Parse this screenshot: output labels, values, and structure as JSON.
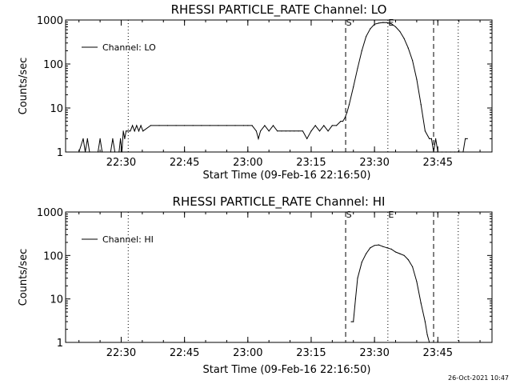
{
  "stamp": "26-Oct-2021 10:47",
  "chart_data": [
    {
      "type": "line",
      "title": "RHESSI PARTICLE_RATE Channel: LO",
      "xlabel": "Start Time (09-Feb-16 22:16:50)",
      "ylabel": "Counts/sec",
      "yscale": "log",
      "ylim": [
        1,
        1000
      ],
      "xlim": [
        "22:16:50",
        "23:57:50"
      ],
      "yticks": [
        "1",
        "10",
        "100",
        "1000"
      ],
      "xticks": [
        "22:30",
        "22:45",
        "23:00",
        "23:15",
        "23:30",
        "23:45"
      ],
      "legend": "top-left",
      "series": [
        {
          "name": "Channel: LO",
          "x": [
            "22:20:00",
            "22:21:00",
            "22:21:30",
            "22:22:00",
            "22:22:30",
            "22:24:30",
            "22:25:00",
            "22:25:30",
            "22:27:30",
            "22:28:00",
            "22:28:30",
            "22:29:30",
            "22:29:50",
            "22:30:10",
            "22:30:30",
            "22:30:50",
            "22:31:10",
            "22:31:30",
            "22:31:50",
            "22:32:10",
            "22:32:40",
            "22:33:10",
            "22:33:40",
            "22:34:10",
            "22:34:40",
            "22:35:10",
            "22:37:00",
            "22:39:00",
            "22:41:00",
            "22:43:00",
            "22:45:00",
            "22:47:00",
            "22:49:00",
            "22:51:00",
            "22:53:00",
            "22:55:00",
            "22:57:00",
            "22:59:00",
            "23:00:00",
            "23:01:00",
            "23:02:00",
            "23:02:30",
            "23:03:00",
            "23:04:00",
            "23:05:00",
            "23:06:00",
            "23:07:00",
            "23:08:00",
            "23:09:00",
            "23:10:00",
            "23:11:00",
            "23:12:00",
            "23:13:00",
            "23:14:00",
            "23:15:00",
            "23:16:00",
            "23:17:00",
            "23:18:00",
            "23:19:00",
            "23:20:00",
            "23:21:00",
            "23:22:00",
            "23:22:30",
            "23:23:00",
            "23:23:30",
            "23:24:00",
            "23:25:00",
            "23:26:00",
            "23:27:00",
            "23:28:00",
            "23:29:00",
            "23:30:00",
            "23:31:00",
            "23:32:00",
            "23:33:00",
            "23:34:00",
            "23:35:00",
            "23:36:00",
            "23:37:00",
            "23:38:00",
            "23:39:00",
            "23:40:00",
            "23:41:00",
            "23:42:00",
            "23:43:00",
            "23:43:30",
            "23:44:00",
            "23:44:30",
            "23:45:00",
            "23:46:00",
            "23:47:00",
            "23:48:00",
            "23:49:00",
            "23:50:00",
            "23:51:00",
            "23:51:30",
            "23:52:00"
          ],
          "y": [
            1,
            2,
            1,
            2,
            1,
            1,
            2,
            1,
            1,
            2,
            1,
            1,
            2,
            1,
            3,
            2,
            3,
            3,
            3,
            3,
            4,
            3,
            4,
            3,
            4,
            3,
            4,
            4,
            4,
            4,
            4,
            4,
            4,
            4,
            4,
            4,
            4,
            4,
            4,
            4,
            3,
            2,
            3,
            4,
            3,
            4,
            3,
            3,
            3,
            3,
            3,
            3,
            3,
            2,
            3,
            4,
            3,
            4,
            3,
            4,
            4,
            5,
            5,
            6,
            8,
            12,
            30,
            80,
            200,
            420,
            630,
            800,
            850,
            880,
            870,
            820,
            700,
            550,
            380,
            230,
            120,
            45,
            12,
            3,
            2,
            2,
            1,
            2,
            1,
            1,
            1,
            1,
            1,
            1,
            1,
            2,
            2
          ]
        }
      ],
      "markers": [
        {
          "label": "S",
          "time": "23:23:10",
          "style": "dashed"
        },
        {
          "label": "E",
          "time": "23:33:10",
          "style": "dotted"
        },
        {
          "label": "",
          "time": "22:31:40",
          "style": "dotted"
        },
        {
          "label": "",
          "time": "23:44:00",
          "style": "dashed"
        },
        {
          "label": "",
          "time": "23:49:50",
          "style": "dotted"
        }
      ]
    },
    {
      "type": "line",
      "title": "RHESSI PARTICLE_RATE Channel: HI",
      "xlabel": "Start Time (09-Feb-16 22:16:50)",
      "ylabel": "Counts/sec",
      "yscale": "log",
      "ylim": [
        1,
        1000
      ],
      "xlim": [
        "22:16:50",
        "23:57:50"
      ],
      "yticks": [
        "1",
        "10",
        "100",
        "1000"
      ],
      "xticks": [
        "22:30",
        "22:45",
        "23:00",
        "23:15",
        "23:30",
        "23:45"
      ],
      "legend": "top-left",
      "series": [
        {
          "name": "Channel: HI",
          "x": [
            "23:24:30",
            "23:25:00",
            "23:25:30",
            "23:26:00",
            "23:27:00",
            "23:28:00",
            "23:29:00",
            "23:30:00",
            "23:31:00",
            "23:32:00",
            "23:33:00",
            "23:34:00",
            "23:35:00",
            "23:36:00",
            "23:37:00",
            "23:38:00",
            "23:39:00",
            "23:40:00",
            "23:41:00",
            "23:42:00",
            "23:42:30",
            "23:43:00"
          ],
          "y": [
            3,
            3,
            10,
            30,
            70,
            110,
            150,
            170,
            175,
            160,
            150,
            140,
            120,
            110,
            100,
            80,
            55,
            25,
            8,
            3,
            1.5,
            1
          ]
        }
      ],
      "markers": [
        {
          "label": "S",
          "time": "23:23:10",
          "style": "dashed"
        },
        {
          "label": "E",
          "time": "23:33:10",
          "style": "dotted"
        },
        {
          "label": "",
          "time": "22:31:40",
          "style": "dotted"
        },
        {
          "label": "",
          "time": "23:44:00",
          "style": "dashed"
        },
        {
          "label": "",
          "time": "23:49:50",
          "style": "dotted"
        }
      ]
    }
  ]
}
